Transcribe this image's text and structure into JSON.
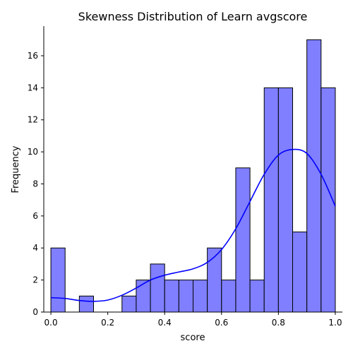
{
  "chart_data": {
    "type": "bar",
    "title": "Skewness Distribution of Learn avgscore",
    "xlabel": "score",
    "ylabel": "Frequency",
    "xlim": [
      -0.025,
      1.025
    ],
    "ylim": [
      0,
      17.85
    ],
    "xticks": [
      "0.0",
      "0.2",
      "0.4",
      "0.6",
      "0.8",
      "1.0"
    ],
    "yticks": [
      "0",
      "2",
      "4",
      "6",
      "8",
      "10",
      "12",
      "14",
      "16"
    ],
    "bin_edges": [
      0.0,
      0.05,
      0.1,
      0.15,
      0.2,
      0.25,
      0.3,
      0.35,
      0.4,
      0.45,
      0.5,
      0.55,
      0.6,
      0.65,
      0.7,
      0.75,
      0.8,
      0.85,
      0.9,
      0.95,
      1.0
    ],
    "values": [
      4,
      0,
      1,
      0,
      0,
      1,
      2,
      3,
      2,
      2,
      2,
      4,
      2,
      9,
      2,
      14,
      14,
      5,
      17,
      14
    ],
    "bar_color": "#7f7fff",
    "bar_edge_color": "#000000",
    "kde": {
      "color": "#0000ff",
      "x": [
        0.0,
        0.05,
        0.1,
        0.15,
        0.2,
        0.25,
        0.3,
        0.35,
        0.4,
        0.45,
        0.5,
        0.55,
        0.6,
        0.65,
        0.7,
        0.75,
        0.8,
        0.85,
        0.9,
        0.95,
        1.0
      ],
      "y": [
        0.9,
        0.85,
        0.72,
        0.67,
        0.75,
        1.05,
        1.5,
        2.0,
        2.3,
        2.5,
        2.7,
        3.1,
        3.9,
        5.2,
        6.9,
        8.6,
        9.8,
        10.15,
        9.9,
        8.6,
        6.6
      ]
    },
    "grid": false,
    "spines": [
      "left",
      "bottom"
    ]
  }
}
